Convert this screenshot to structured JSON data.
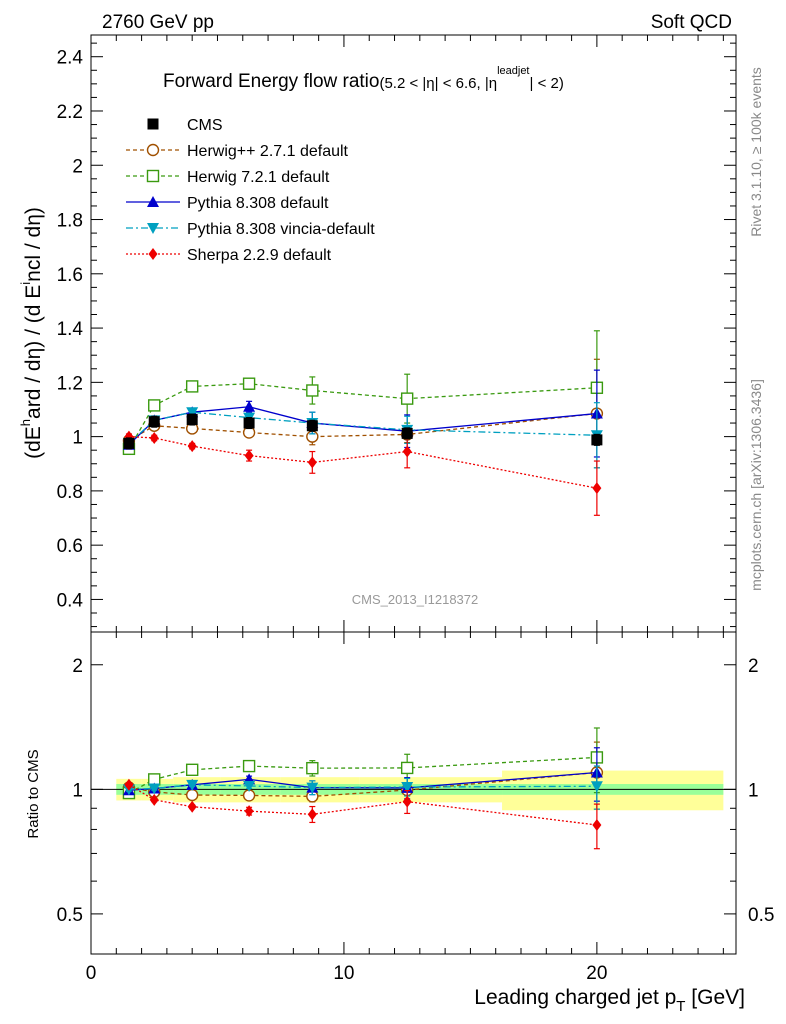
{
  "header": {
    "left": "2760 GeV pp",
    "right": "Soft QCD",
    "side_top": "Rivet 3.1.10, ≥ 100k events",
    "side_bottom": "mcplots.cern.ch [arXiv:1306.3436]",
    "watermark": "CMS_2013_I1218372"
  },
  "chart_data": {
    "type": "scatter",
    "title": {
      "main": "Forward Energy flow ratio",
      "cut": "(5.2 < |η| < 6.6, |η",
      "cut_sup": "leadjet",
      "cut_end": "| < 2)"
    },
    "ylabel": {
      "pre": "(dE",
      "sup": "h",
      "post": "ard / dη) / (d E",
      "sup2": "i",
      "post2": "ncl / dη)"
    },
    "xlabel": {
      "main": "Leading charged jet p",
      "sub": "T",
      "unit": " [GeV]"
    },
    "ratio_ylabel": "Ratio to CMS",
    "xlim": [
      0,
      25.5
    ],
    "ylim": [
      0.28,
      2.48
    ],
    "ratio_ylim": [
      0.4,
      2.4
    ],
    "ratio_scale": "log",
    "x_ticks": [
      "0",
      "10",
      "20"
    ],
    "y_ticks": [
      "0.4",
      "0.6",
      "0.8",
      "1",
      "1.2",
      "1.4",
      "1.6",
      "1.8",
      "2",
      "2.2",
      "2.4"
    ],
    "ratio_ticks": [
      "0.5",
      "1",
      "2"
    ],
    "legend_position": "top-left",
    "reference": {
      "name": "CMS",
      "x": [
        1.5,
        2.5,
        4.0,
        6.25,
        8.75,
        12.5,
        20.0
      ],
      "y": [
        0.975,
        1.055,
        1.063,
        1.05,
        1.04,
        1.012,
        0.988
      ],
      "err": [
        0.02,
        0.02,
        0.02,
        0.02,
        0.02,
        0.02,
        0.02
      ],
      "band_stat": [
        0.03,
        0.03,
        0.03,
        0.03,
        0.03,
        0.03,
        0.03
      ],
      "band_total": [
        0.06,
        0.06,
        0.07,
        0.07,
        0.07,
        0.07,
        0.11
      ]
    },
    "series": [
      {
        "name": "Herwig++ 2.7.1 default",
        "color": "#a05000",
        "marker": "circle-open",
        "dash": "4,3",
        "y": [
          0.985,
          1.04,
          1.03,
          1.015,
          1.0,
          1.008,
          1.085
        ],
        "err": [
          0.01,
          0.01,
          0.01,
          0.015,
          0.03,
          0.03,
          0.2
        ]
      },
      {
        "name": "Herwig 7.2.1 default",
        "color": "#3a9a10",
        "marker": "square-open",
        "dash": "4,3",
        "y": [
          0.955,
          1.115,
          1.185,
          1.195,
          1.17,
          1.14,
          1.18
        ],
        "err": [
          0.01,
          0.01,
          0.015,
          0.02,
          0.05,
          0.09,
          0.21
        ]
      },
      {
        "name": "Pythia 8.308 default",
        "color": "#0000cc",
        "marker": "triangle-up",
        "dash": "",
        "y": [
          0.97,
          1.06,
          1.09,
          1.11,
          1.05,
          1.02,
          1.085
        ],
        "err": [
          0.01,
          0.01,
          0.01,
          0.02,
          0.04,
          0.06,
          0.16
        ]
      },
      {
        "name": "Pythia 8.308 vincia-default",
        "color": "#00a0c0",
        "marker": "triangle-down",
        "dash": "7,3,2,3",
        "y": [
          0.975,
          1.06,
          1.09,
          1.07,
          1.05,
          1.025,
          1.005
        ],
        "err": [
          0.01,
          0.01,
          0.01,
          0.015,
          0.04,
          0.05,
          0.12
        ]
      },
      {
        "name": "Sherpa 2.2.9 default",
        "color": "#ee0000",
        "marker": "diamond",
        "dash": "2,2",
        "y": [
          1.0,
          0.995,
          0.965,
          0.93,
          0.905,
          0.945,
          0.81
        ],
        "err": [
          0.01,
          0.01,
          0.01,
          0.02,
          0.04,
          0.06,
          0.1
        ]
      }
    ]
  }
}
